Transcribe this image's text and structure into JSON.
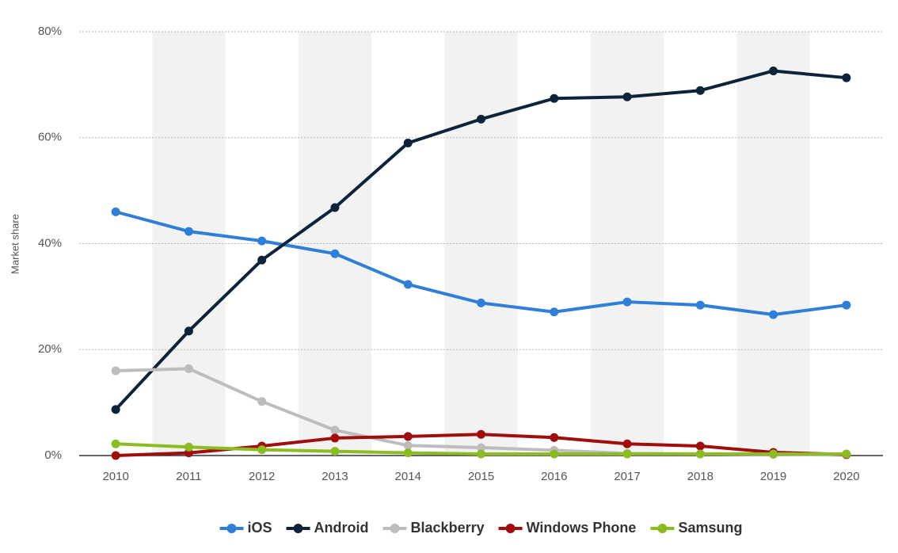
{
  "chart_data": {
    "type": "line",
    "y_label": "Market share",
    "categories": [
      "2010",
      "2011",
      "2012",
      "2013",
      "2014",
      "2015",
      "2016",
      "2017",
      "2018",
      "2019",
      "2020"
    ],
    "series": [
      {
        "name": "iOS",
        "color": "#2f7ed8",
        "values": [
          46.0,
          42.3,
          40.5,
          38.1,
          32.3,
          28.8,
          27.1,
          29.0,
          28.4,
          26.6,
          28.4
        ]
      },
      {
        "name": "Android",
        "color": "#0d233a",
        "values": [
          8.7,
          23.5,
          36.9,
          46.8,
          59.0,
          63.5,
          67.4,
          67.7,
          68.9,
          72.6,
          71.3
        ]
      },
      {
        "name": "Blackberry",
        "color": "#bdbdbd",
        "values": [
          16.0,
          16.4,
          10.2,
          4.8,
          1.9,
          1.5,
          1.0,
          0.4,
          0.3,
          0.2,
          0.1
        ]
      },
      {
        "name": "Windows Phone",
        "color": "#a00d0d",
        "values": [
          0.0,
          0.5,
          1.8,
          3.3,
          3.6,
          4.0,
          3.4,
          2.2,
          1.8,
          0.6,
          0.2
        ]
      },
      {
        "name": "Samsung",
        "color": "#8bbc21",
        "values": [
          2.2,
          1.6,
          1.1,
          0.8,
          0.5,
          0.3,
          0.3,
          0.3,
          0.3,
          0.3,
          0.3
        ]
      }
    ],
    "ylim": [
      0,
      80
    ],
    "yticks": [
      {
        "value": 0,
        "label": "0%"
      },
      {
        "value": 20,
        "label": "20%"
      },
      {
        "value": 40,
        "label": "40%"
      },
      {
        "value": 60,
        "label": "60%"
      },
      {
        "value": 80,
        "label": "80%"
      }
    ],
    "grid": true,
    "legend": "bottom"
  }
}
